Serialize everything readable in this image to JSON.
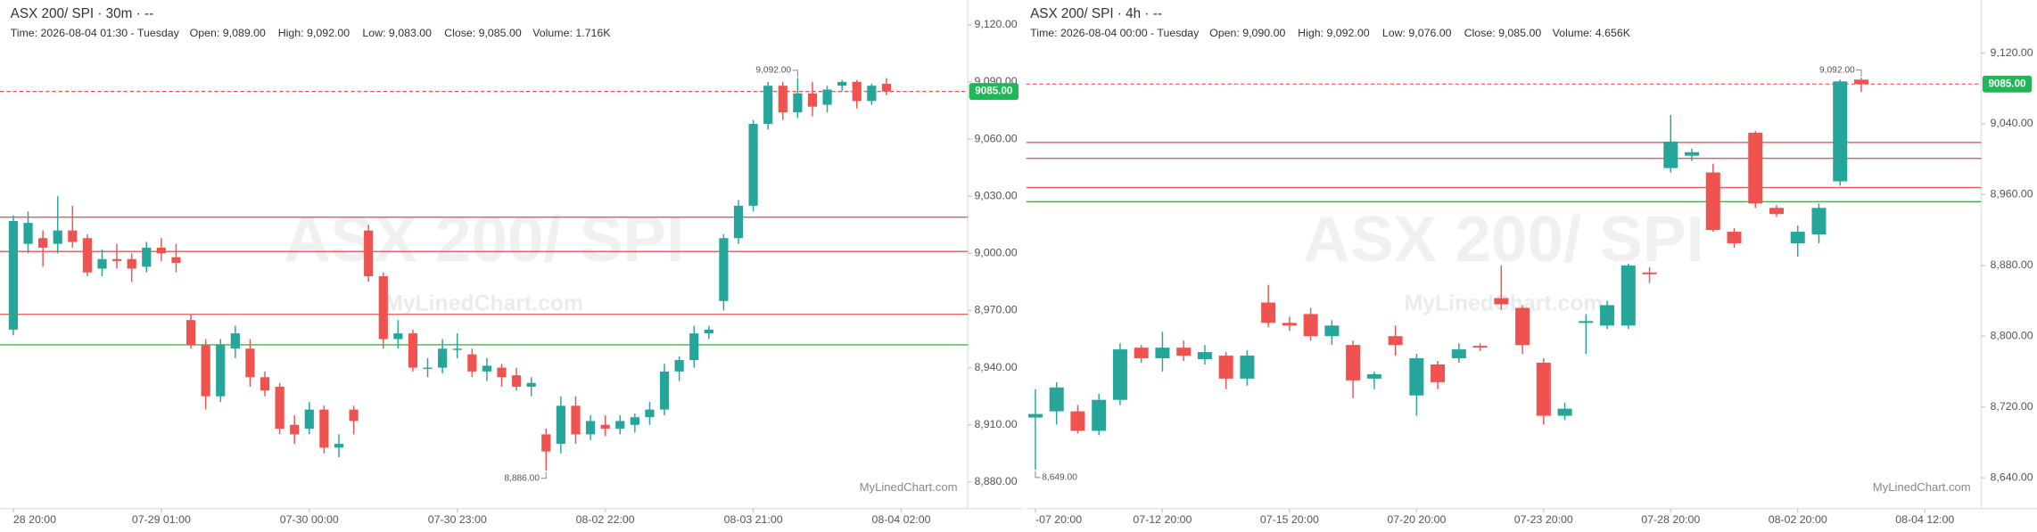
{
  "chart_data": [
    {
      "type": "candlestick",
      "title": "ASX 200/ SPI · 30m · --",
      "info": [
        "Time: 2026-08-04 01:30 - Tuesday",
        "Open: 9,089.00",
        "High: 9,092.00",
        "Low: 9,083.00",
        "Close: 9,085.00",
        "Volume: 1.716K"
      ],
      "watermark": "ASX 200/ SPI",
      "watermark_site": "MyLinedChart.com",
      "credit": "MyLinedChart.com",
      "max_label": "9,092.00",
      "min_label": "8,886.00",
      "open": [
        8960,
        9005,
        9008,
        9005,
        9012,
        9008,
        8992,
        8997,
        8997,
        8993,
        9003,
        8998,
        8965,
        8952,
        8925,
        8950,
        8950,
        8935,
        8930,
        8910,
        8908,
        8918,
        8898,
        8918,
        9012,
        8988,
        8955,
        8958,
        8940,
        8940,
        8950,
        8947,
        8938,
        8940,
        8936,
        8930,
        8905,
        8900,
        8920,
        8905,
        8910,
        8908,
        8910,
        8914,
        8918,
        8938,
        8944,
        8958,
        8975,
        9008,
        9025,
        9068,
        9088,
        9074,
        9084,
        9078,
        9088,
        9090,
        9080,
        9089
      ],
      "high": [
        9020,
        9022,
        9012,
        9030,
        9025,
        9010,
        9002,
        9005,
        9000,
        9006,
        9008,
        9005,
        8968,
        8955,
        8955,
        8962,
        8955,
        8938,
        8932,
        8915,
        8922,
        8920,
        8905,
        8920,
        9015,
        8990,
        8965,
        8960,
        8945,
        8955,
        8958,
        8950,
        8945,
        8942,
        8940,
        8935,
        8908,
        8925,
        8925,
        8915,
        8915,
        8915,
        8916,
        8922,
        8942,
        8946,
        8962,
        8962,
        9010,
        9028,
        9070,
        9090,
        9090,
        9092,
        9090,
        9088,
        9091,
        9091,
        9089,
        9092
      ],
      "low": [
        8957,
        9000,
        8993,
        9000,
        9003,
        8988,
        8988,
        8992,
        8985,
        8990,
        8996,
        8990,
        8950,
        8918,
        8922,
        8945,
        8930,
        8925,
        8905,
        8900,
        8905,
        8895,
        8893,
        8905,
        8985,
        8950,
        8950,
        8938,
        8935,
        8937,
        8945,
        8935,
        8933,
        8930,
        8928,
        8925,
        8886,
        8895,
        8900,
        8902,
        8904,
        8905,
        8906,
        8910,
        8915,
        8933,
        8940,
        8955,
        8970,
        9005,
        9022,
        9065,
        9070,
        9071,
        9072,
        9074,
        9085,
        9076,
        9078,
        9083
      ],
      "close": [
        9017,
        9016,
        9003,
        9012,
        9006,
        8990,
        8997,
        8996,
        8992,
        9003,
        9000,
        8995,
        8952,
        8925,
        8952,
        8958,
        8935,
        8928,
        8908,
        8905,
        8918,
        8898,
        8900,
        8912,
        8988,
        8955,
        8958,
        8940,
        8940,
        8950,
        8950,
        8938,
        8941,
        8935,
        8930,
        8932,
        8896,
        8920,
        8905,
        8912,
        8908,
        8912,
        8914,
        8918,
        8938,
        8944,
        8958,
        8960,
        9008,
        9025,
        9068,
        9088,
        9074,
        9084,
        9077,
        9086,
        9090,
        9080,
        9088,
        9085
      ],
      "up_color": "#26a69a",
      "down_color": "#ef5350",
      "levels": [
        {
          "value": 9019,
          "color": "#e05a5a"
        },
        {
          "value": 9001,
          "color": "#e05a5a"
        },
        {
          "value": 8968,
          "color": "#e05a5a"
        },
        {
          "value": 8952,
          "color": "#4caf50"
        }
      ],
      "last_price": {
        "value": 9085,
        "label": "9085.00"
      },
      "xlim": [
        -0.9,
        64.5
      ],
      "xticks": [
        {
          "value": 0,
          "label": "28 20:00"
        },
        {
          "value": 10,
          "label": "07-29 01:00"
        },
        {
          "value": 20,
          "label": "07-30 00:00"
        },
        {
          "value": 30,
          "label": "07-30 23:00"
        },
        {
          "value": 40,
          "label": "08-02 22:00"
        },
        {
          "value": 50,
          "label": "08-03 21:00"
        },
        {
          "value": 60,
          "label": "08-04 02:00"
        }
      ],
      "ylim": [
        8866,
        9133
      ],
      "yticks": [
        {
          "value": 9120,
          "label": "9,120.00"
        },
        {
          "value": 9090,
          "label": "9,090.00"
        },
        {
          "value": 9060,
          "label": "9,060.00"
        },
        {
          "value": 9030,
          "label": "9,030.00"
        },
        {
          "value": 9000,
          "label": "9,000.00"
        },
        {
          "value": 8970,
          "label": "8,970.00"
        },
        {
          "value": 8940,
          "label": "8,940.00"
        },
        {
          "value": 8910,
          "label": "8,910.00"
        },
        {
          "value": 8880,
          "label": "8,880.00"
        }
      ]
    },
    {
      "type": "candlestick",
      "title": "ASX 200/ SPI · 4h · --",
      "info": [
        "Time: 2026-08-04 00:00 - Tuesday",
        "Open: 9,090.00",
        "High: 9,092.00",
        "Low: 9,076.00",
        "Close: 9,085.00",
        "Volume: 4.656K"
      ],
      "watermark": "ASX 200/ SPI",
      "watermark_site": "MyLinedChart.com",
      "credit": "MyLinedChart.com",
      "max_label": "9,092.00",
      "min_label": "8,649.00",
      "open": [
        8708,
        8715,
        8715,
        8693,
        8728,
        8787,
        8775,
        8787,
        8774,
        8778,
        8752,
        8838,
        8815,
        8825,
        8800,
        8790,
        8752,
        8800,
        8733,
        8768,
        8775,
        8789,
        8843,
        8832,
        8770,
        8710,
        8815,
        8812,
        8812,
        8872,
        8990,
        9004,
        8985,
        8918,
        9030,
        8945,
        8905,
        8915,
        8975,
        9090
      ],
      "high": [
        8740,
        8748,
        8722,
        8735,
        8792,
        8790,
        8805,
        8795,
        8790,
        8782,
        8784,
        8858,
        8822,
        8832,
        8818,
        8795,
        8760,
        8812,
        8780,
        8772,
        8792,
        8792,
        8880,
        8835,
        8775,
        8725,
        8825,
        8840,
        8882,
        8878,
        9050,
        9012,
        8995,
        8922,
        9032,
        8948,
        8925,
        8950,
        9090,
        9092
      ],
      "low": [
        8649,
        8700,
        8690,
        8688,
        8722,
        8770,
        8760,
        8772,
        8768,
        8740,
        8744,
        8810,
        8806,
        8795,
        8790,
        8730,
        8740,
        8778,
        8710,
        8740,
        8770,
        8783,
        8830,
        8780,
        8700,
        8705,
        8780,
        8808,
        8808,
        8860,
        8985,
        8998,
        8918,
        8900,
        8945,
        8935,
        8890,
        8905,
        8970,
        9076
      ],
      "close": [
        8712,
        8742,
        8693,
        8728,
        8785,
        8775,
        8787,
        8778,
        8782,
        8752,
        8778,
        8815,
        8812,
        8800,
        8812,
        8750,
        8757,
        8790,
        8775,
        8748,
        8785,
        8787,
        8836,
        8790,
        8710,
        8718,
        8817,
        8835,
        8880,
        8870,
        9020,
        9008,
        8920,
        8905,
        8950,
        8938,
        8918,
        8945,
        9088,
        9085
      ],
      "up_color": "#26a69a",
      "down_color": "#ef5350",
      "levels": [
        {
          "value": 9019,
          "color": "#e05a5a"
        },
        {
          "value": 9001,
          "color": "#e05a5a"
        },
        {
          "value": 8968,
          "color": "#e05a5a"
        },
        {
          "value": 8952,
          "color": "#4caf50"
        }
      ],
      "last_price": {
        "value": 9085,
        "label": "9085.00"
      },
      "xlim": [
        -0.43,
        44.66
      ],
      "xticks": [
        {
          "value": 0,
          "label": "-07 20:00"
        },
        {
          "value": 6,
          "label": "07-12 20:00"
        },
        {
          "value": 12,
          "label": "07-15 20:00"
        },
        {
          "value": 18,
          "label": "07-20 20:00"
        },
        {
          "value": 24,
          "label": "07-23 20:00"
        },
        {
          "value": 30,
          "label": "07-28 20:00"
        },
        {
          "value": 36,
          "label": "08-02 20:00"
        },
        {
          "value": 42,
          "label": "08-04 12:00"
        }
      ],
      "ylim": [
        8605,
        9180
      ],
      "yticks": [
        {
          "value": 9120,
          "label": "9,120.00"
        },
        {
          "value": 9040,
          "label": "9,040.00"
        },
        {
          "value": 8960,
          "label": "8,960.00"
        },
        {
          "value": 8880,
          "label": "8,880.00"
        },
        {
          "value": 8800,
          "label": "8,800.00"
        },
        {
          "value": 8720,
          "label": "8,720.00"
        },
        {
          "value": 8640,
          "label": "8,640.00"
        }
      ]
    }
  ]
}
